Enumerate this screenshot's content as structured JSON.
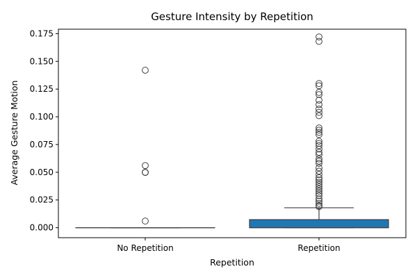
{
  "chart_data": {
    "type": "box",
    "title": "Gesture Intensity by Repetition",
    "xlabel": "Repetition",
    "ylabel": "Average Gesture Motion",
    "categories": [
      "No Repetition",
      "Repetition"
    ],
    "ylim": [
      -0.009,
      0.179
    ],
    "yticks": [
      0.0,
      0.025,
      0.05,
      0.075,
      0.1,
      0.125,
      0.15,
      0.175
    ],
    "ytick_labels": [
      "0.000",
      "0.025",
      "0.050",
      "0.075",
      "0.100",
      "0.125",
      "0.150",
      "0.175"
    ],
    "grid": false,
    "colors": {
      "box_fill": "#1f77b4",
      "line": "#3f3f3f"
    },
    "boxes": [
      {
        "category": "No Repetition",
        "q1": 0.0,
        "median": 0.0,
        "q3": 0.0,
        "whisker_low": 0.0,
        "whisker_high": 0.0,
        "outliers": [
          0.142,
          0.056,
          0.05,
          0.0498,
          0.006
        ]
      },
      {
        "category": "Repetition",
        "q1": 0.0,
        "median": 0.0,
        "q3": 0.0073,
        "whisker_low": 0.0,
        "whisker_high": 0.018,
        "outliers": [
          0.172,
          0.168,
          0.13,
          0.128,
          0.122,
          0.12,
          0.115,
          0.111,
          0.107,
          0.104,
          0.101,
          0.09,
          0.088,
          0.086,
          0.084,
          0.078,
          0.076,
          0.074,
          0.071,
          0.068,
          0.066,
          0.062,
          0.06,
          0.058,
          0.054,
          0.051,
          0.048,
          0.045,
          0.043,
          0.041,
          0.039,
          0.037,
          0.035,
          0.033,
          0.031,
          0.029,
          0.026,
          0.024,
          0.022,
          0.02,
          0.019
        ]
      }
    ]
  }
}
